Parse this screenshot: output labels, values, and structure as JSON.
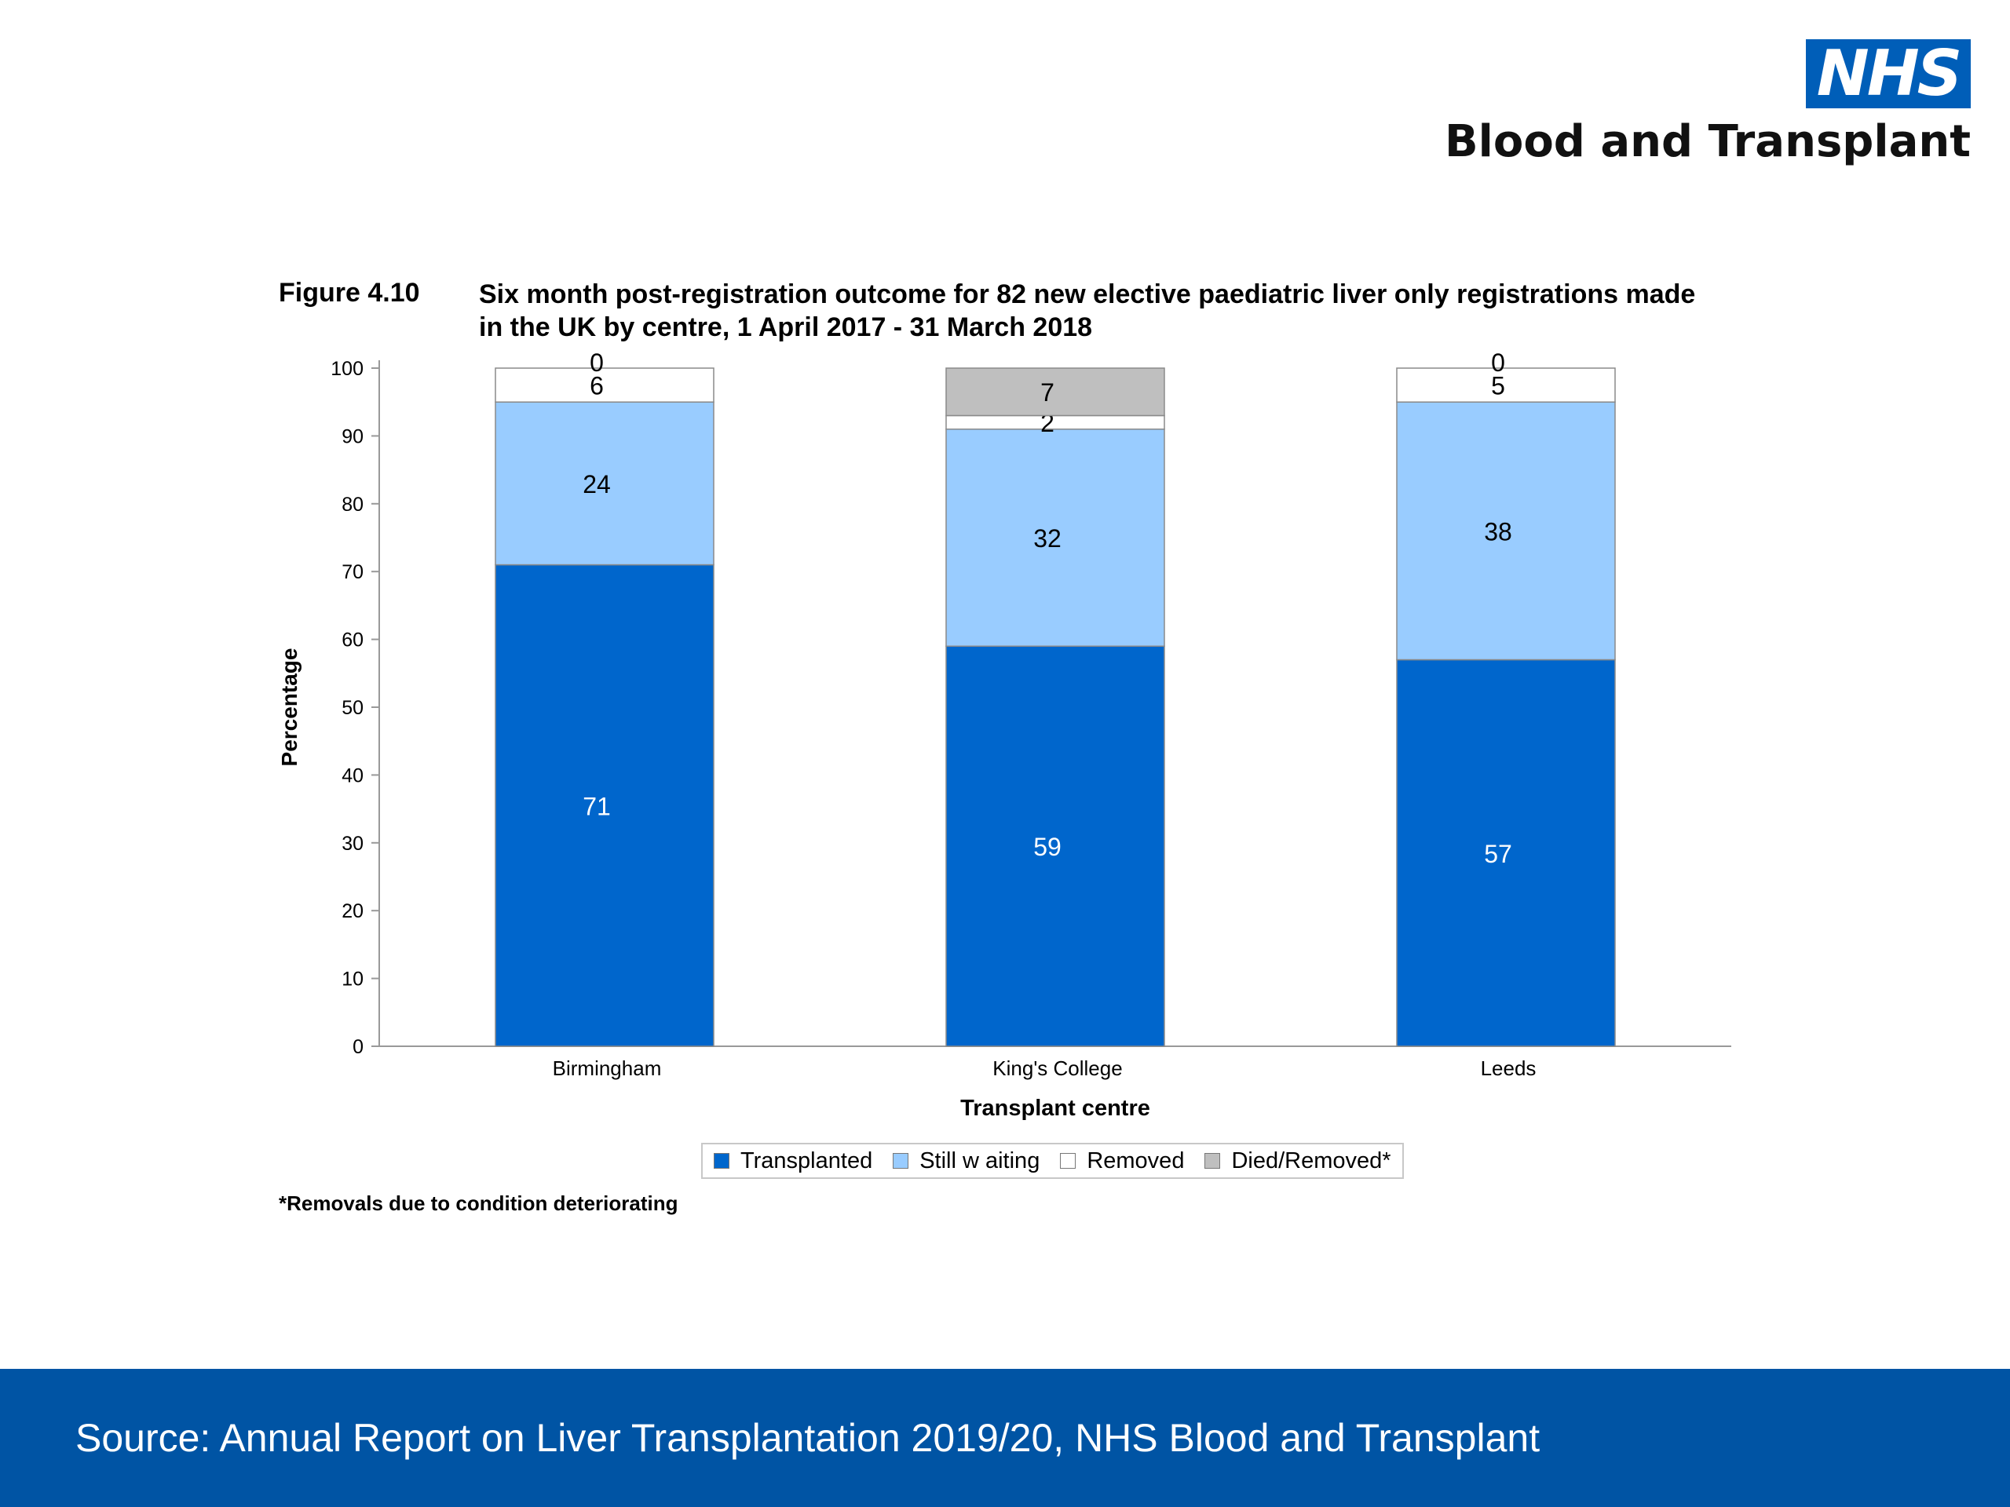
{
  "header": {
    "logo_text": "NHS",
    "org_name": "Blood and Transplant",
    "figure_label": "Figure 4.10",
    "figure_title": "Six month post-registration outcome for 82 new elective paediatric liver only registrations made in the UK by centre, 1 April 2017 - 31 March 2018"
  },
  "chart_data": {
    "type": "bar",
    "stacked": true,
    "categories": [
      "Birmingham",
      "King's College",
      "Leeds"
    ],
    "xlabel": "Transplant centre",
    "ylabel": "Percentage",
    "ylim": [
      0,
      100
    ],
    "yticks": [
      0,
      10,
      20,
      30,
      40,
      50,
      60,
      70,
      80,
      90,
      100
    ],
    "grid": false,
    "legend_position": "bottom",
    "series": [
      {
        "name": "Transplanted",
        "values": [
          71,
          59,
          57
        ],
        "color": "#0066cc",
        "label_color": "#ffffff"
      },
      {
        "name": "Still w aiting",
        "values": [
          24,
          32,
          38
        ],
        "color": "#99ccff",
        "label_color": "#000000"
      },
      {
        "name": "Removed",
        "values": [
          6,
          2,
          5
        ],
        "color": "#ffffff",
        "label_color": "#000000"
      },
      {
        "name": "Died/Removed*",
        "values": [
          0,
          7,
          0
        ],
        "color": "#bfbfbf",
        "label_color": "#000000"
      }
    ]
  },
  "footnote": "*Removals due to condition deteriorating",
  "footer": {
    "source": "Source: Annual Report on Liver Transplantation 2019/20, NHS Blood and Transplant"
  }
}
